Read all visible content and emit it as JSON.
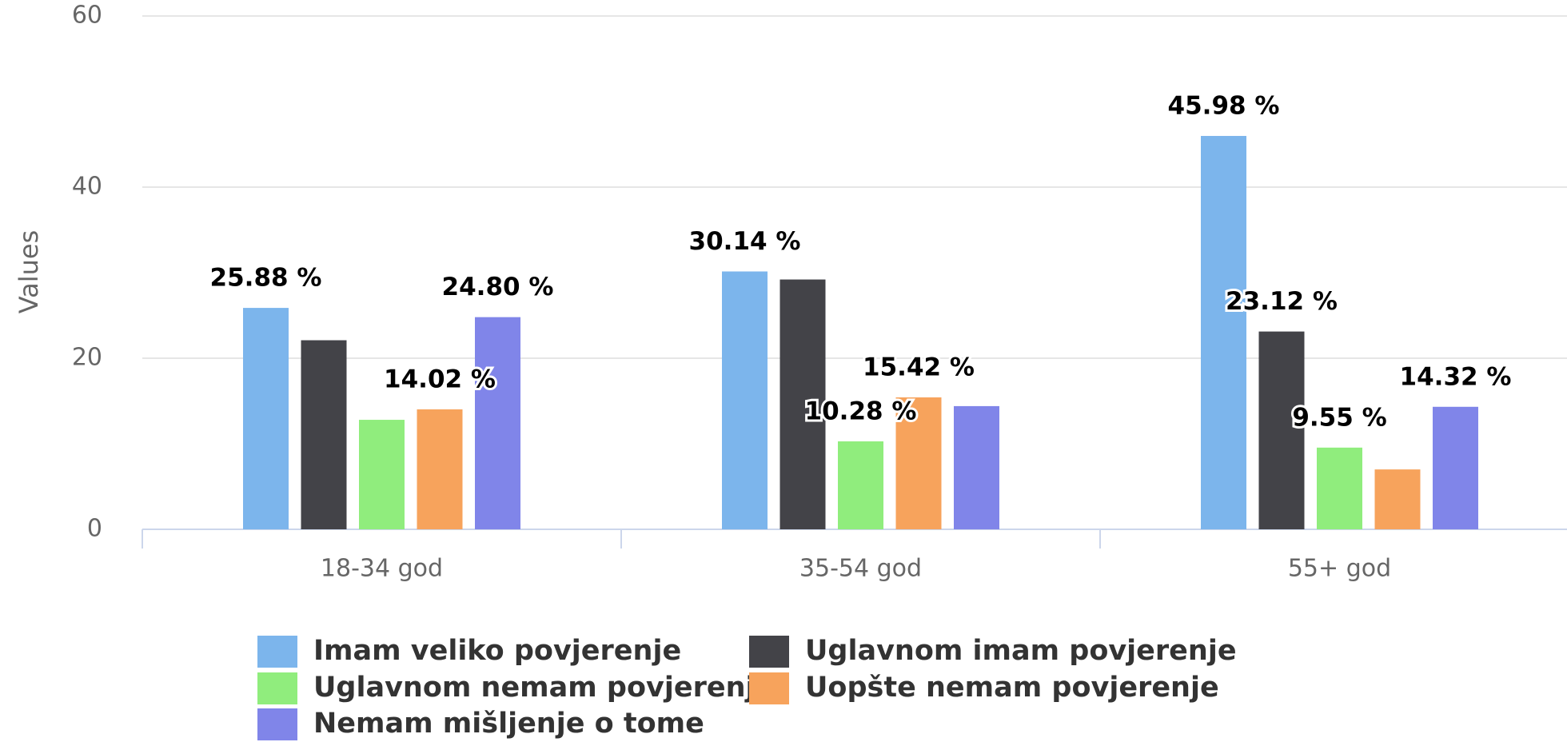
{
  "chart_data": {
    "type": "bar",
    "y_axis_label": "Values",
    "categories": [
      "18-34 god",
      "35-54 god",
      "55+ god"
    ],
    "series": [
      {
        "name": "Imam veliko povjerenje",
        "color": "#7cb5ec",
        "values": [
          25.88,
          30.14,
          45.98
        ],
        "value_labels": [
          "25.88 %",
          "30.14 %",
          "45.98 %"
        ]
      },
      {
        "name": "Uglavnom imam povjerenje",
        "color": "#434348",
        "values": [
          22.1,
          29.2,
          23.12
        ],
        "value_labels": [
          null,
          null,
          "23.12 %"
        ]
      },
      {
        "name": "Uglavnom nemam povjerenje",
        "color": "#90ed7d",
        "values": [
          12.8,
          10.28,
          9.55
        ],
        "value_labels": [
          null,
          "10.28 %",
          "9.55 %"
        ]
      },
      {
        "name": "Uopšte nemam povjerenje",
        "color": "#f7a35c",
        "values": [
          14.02,
          15.42,
          7.0
        ],
        "value_labels": [
          "14.02 %",
          "15.42 %",
          null
        ]
      },
      {
        "name": "Nemam mišljenje o tome",
        "color": "#8085e9",
        "values": [
          24.8,
          14.4,
          14.32
        ],
        "value_labels": [
          "24.80 %",
          null,
          "14.32 %"
        ]
      }
    ],
    "ylim": [
      0,
      60
    ],
    "yticks": [
      0,
      20,
      40,
      60
    ],
    "grid": true,
    "legend": "bottom"
  }
}
